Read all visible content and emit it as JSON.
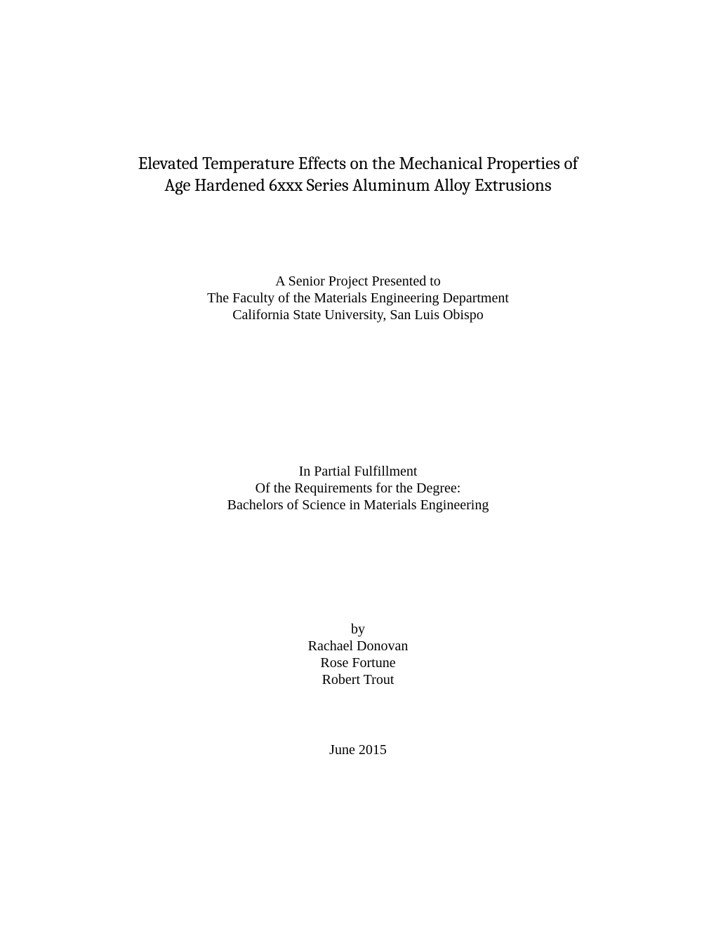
{
  "title": {
    "line1": "Elevated Temperature Effects on the Mechanical Properties of",
    "line2": "Age Hardened 6xxx Series Aluminum Alloy Extrusions"
  },
  "presented": {
    "line1": "A Senior Project Presented to",
    "line2": "The Faculty of the Materials Engineering Department",
    "line3": "California State University, San Luis Obispo"
  },
  "fulfillment": {
    "line1": "In Partial Fulfillment",
    "line2": "Of the Requirements for the Degree:",
    "line3": "Bachelors of Science in Materials Engineering"
  },
  "authors": {
    "by": "by",
    "name1": "Rachael Donovan",
    "name2": "Rose Fortune",
    "name3": "Robert Trout"
  },
  "date": "June 2015"
}
